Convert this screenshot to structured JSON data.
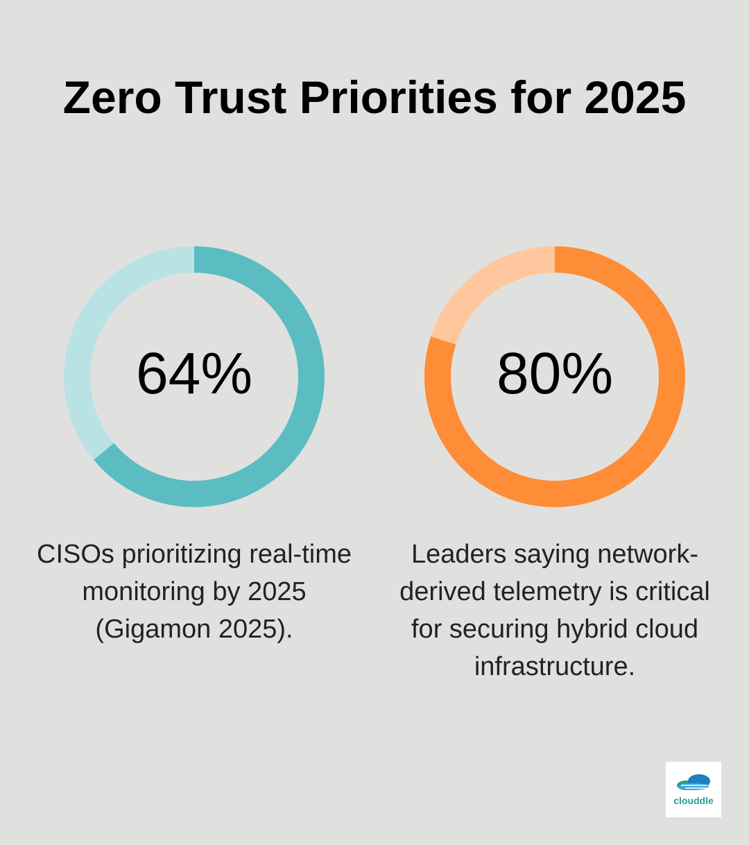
{
  "title": "Zero Trust Priorities for 2025",
  "logo": "clouddle",
  "chart_data": [
    {
      "type": "donut",
      "value": 64,
      "value_label": "64%",
      "caption": "CISOs prioritizing real-time monitoring by 2025 (Gigamon 2025).",
      "color": "#5bbcc1",
      "track_color": "#b9e2e4"
    },
    {
      "type": "donut",
      "value": 80,
      "value_label": "80%",
      "caption": "Leaders saying network-derived telemetry is critical for securing hybrid cloud infrastructure.",
      "color": "#ff8c36",
      "track_color": "#ffc79e"
    }
  ]
}
